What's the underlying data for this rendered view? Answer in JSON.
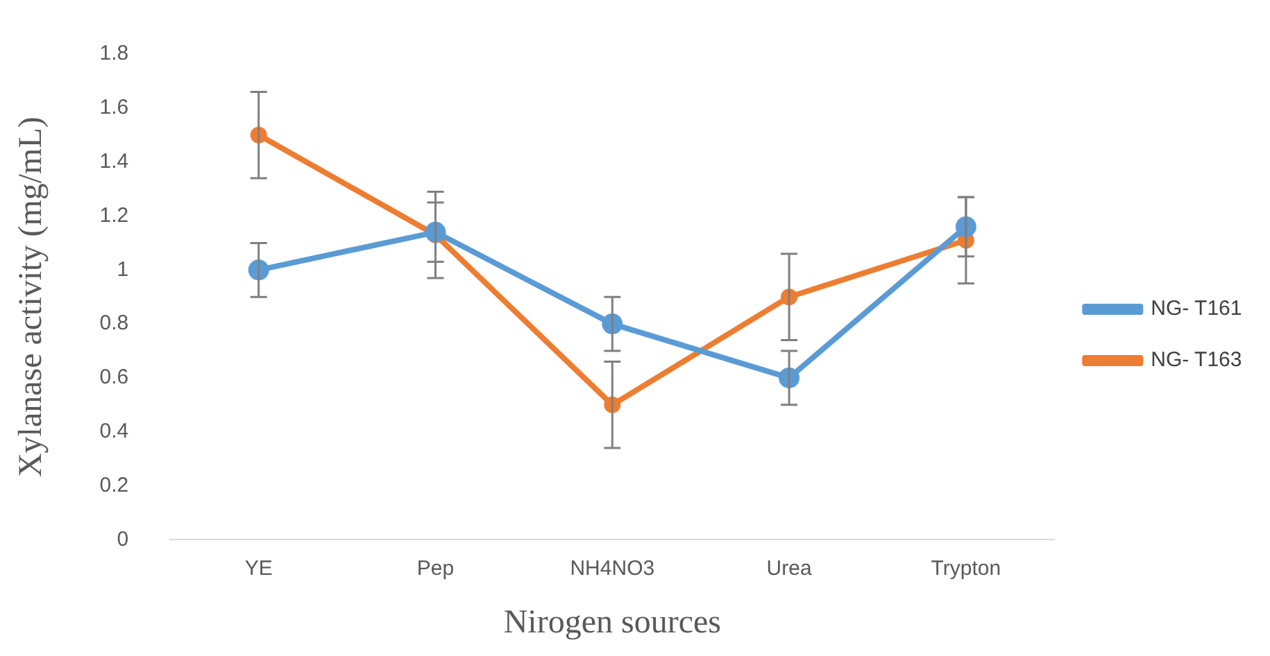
{
  "chart_data": {
    "type": "line",
    "xlabel": "Nirogen sources",
    "ylabel": "Xylanase activity (mg/mL)",
    "categories": [
      "YE",
      "Pep",
      "NH4NO3",
      "Urea",
      "Trypton"
    ],
    "series": [
      {
        "name": "NG- T161",
        "color": "#5b9bd5",
        "values": [
          1.0,
          1.14,
          0.8,
          0.6,
          1.16
        ],
        "errors": [
          0.1,
          0.11,
          0.1,
          0.1,
          0.11
        ]
      },
      {
        "name": "NG- T163",
        "color": "#ed7d31",
        "values": [
          1.5,
          1.13,
          0.5,
          0.9,
          1.11
        ],
        "errors": [
          0.16,
          0.16,
          0.16,
          0.16,
          0.16
        ]
      }
    ],
    "ylim": [
      0,
      1.8
    ],
    "yticks": [
      0,
      0.2,
      0.4,
      0.6,
      0.8,
      1,
      1.2,
      1.4,
      1.6,
      1.8
    ],
    "grid": false,
    "legend": "right",
    "marker": "circle",
    "line_style": "solid"
  }
}
